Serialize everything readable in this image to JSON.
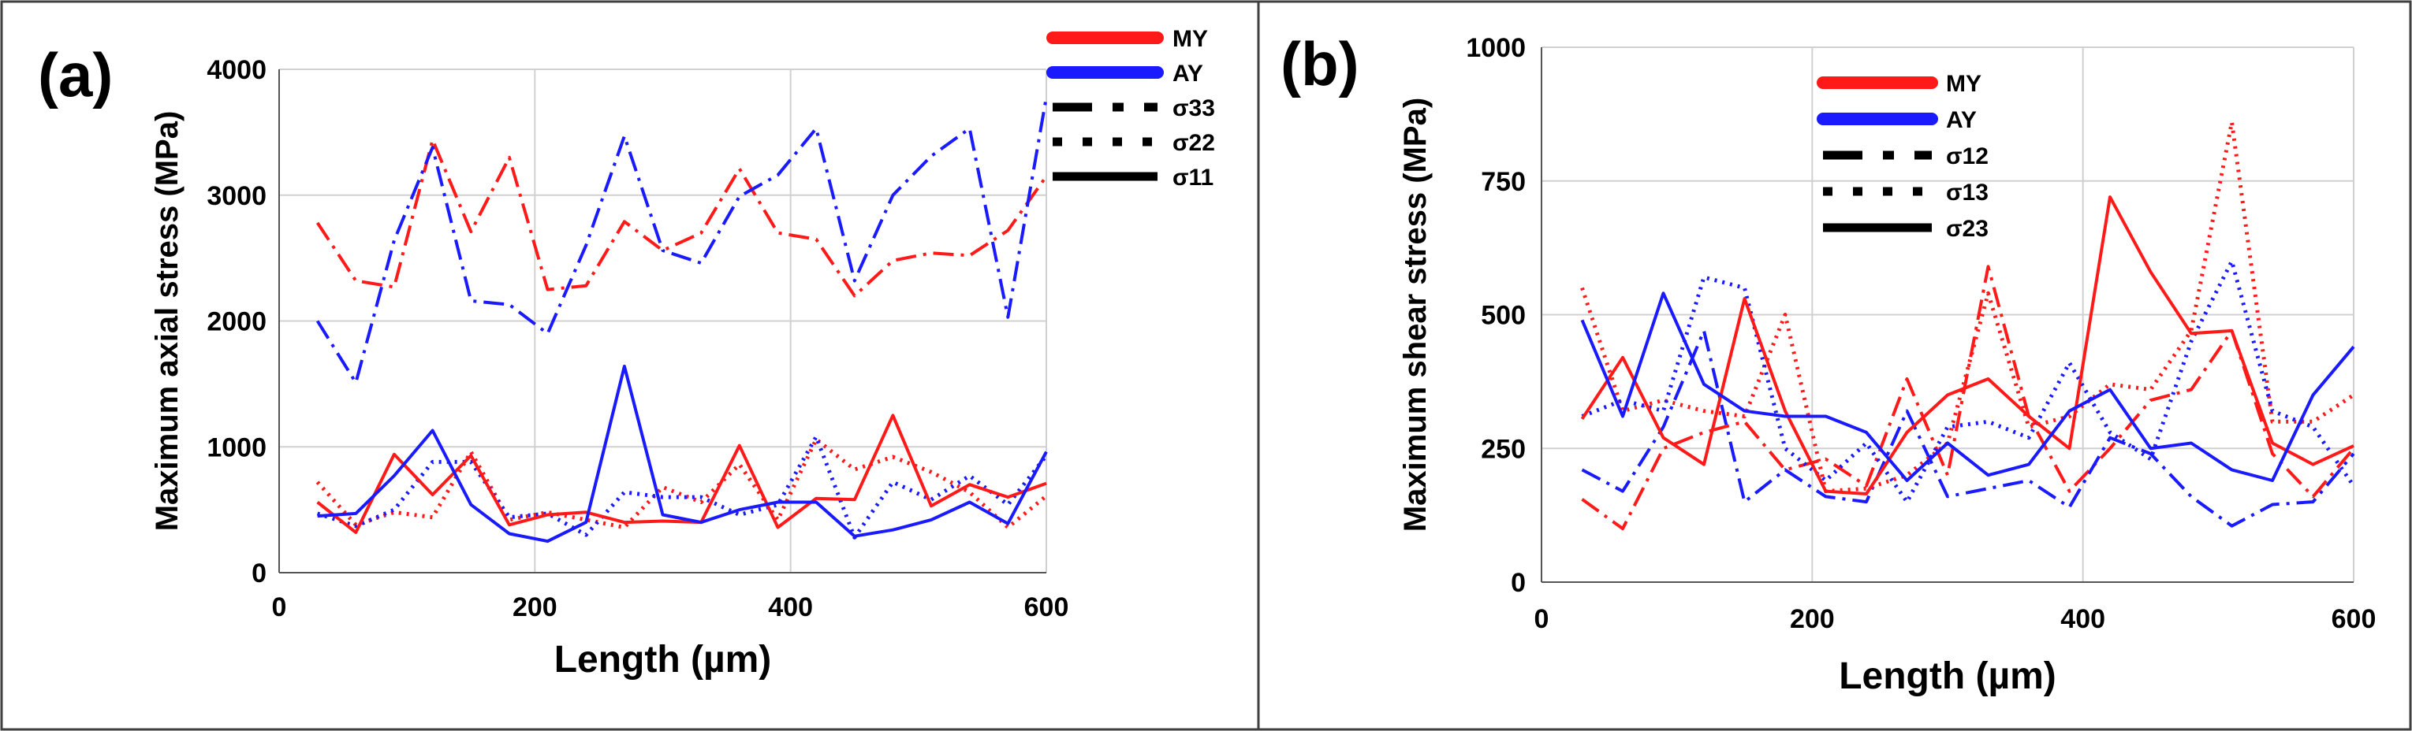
{
  "colors": {
    "red": "#ff1a1a",
    "blue": "#1a1aff",
    "black": "#000000",
    "grid": "#d0d0d0",
    "border": "#404040"
  },
  "chart_data": [
    {
      "type": "line",
      "panel_label": "(a)",
      "title": "",
      "xlabel": "Length (µm)",
      "ylabel": "Maximum axial stress (MPa)",
      "xlim": [
        0,
        600
      ],
      "ylim": [
        0,
        4000
      ],
      "xticks": [
        0,
        200,
        400,
        600
      ],
      "yticks": [
        0,
        1000,
        2000,
        3000,
        4000
      ],
      "grid": true,
      "legend_position": "top-right",
      "legend": [
        {
          "label": "MY",
          "kind": "color",
          "color": "red"
        },
        {
          "label": "AY",
          "kind": "color",
          "color": "blue"
        },
        {
          "label": "σ33",
          "kind": "style",
          "style": "dashdot"
        },
        {
          "label": "σ22",
          "kind": "style",
          "style": "dot"
        },
        {
          "label": "σ11",
          "kind": "style",
          "style": "solid"
        }
      ],
      "x": [
        30,
        60,
        90,
        120,
        150,
        180,
        210,
        240,
        270,
        300,
        330,
        360,
        390,
        420,
        450,
        480,
        510,
        540,
        570,
        600
      ],
      "series": [
        {
          "name": "MY σ33",
          "color": "red",
          "style": "dashdot",
          "values": [
            2780,
            2320,
            2270,
            3440,
            2710,
            3300,
            2250,
            2280,
            2790,
            2560,
            2700,
            3210,
            2700,
            2650,
            2200,
            2480,
            2540,
            2520,
            2720,
            3150
          ]
        },
        {
          "name": "AY σ33",
          "color": "blue",
          "style": "dashdot",
          "values": [
            2000,
            1510,
            2640,
            3380,
            2160,
            2130,
            1900,
            2600,
            3470,
            2560,
            2460,
            2990,
            3160,
            3530,
            2320,
            3000,
            3310,
            3530,
            2030,
            3780
          ]
        },
        {
          "name": "MY σ22",
          "color": "red",
          "style": "dot",
          "values": [
            720,
            380,
            480,
            440,
            960,
            420,
            480,
            420,
            360,
            680,
            560,
            860,
            420,
            1060,
            820,
            920,
            800,
            640,
            360,
            610
          ]
        },
        {
          "name": "AY σ22",
          "color": "blue",
          "style": "dot",
          "values": [
            470,
            370,
            500,
            880,
            880,
            440,
            470,
            300,
            640,
            600,
            600,
            460,
            540,
            1080,
            280,
            720,
            580,
            770,
            540,
            930
          ]
        },
        {
          "name": "MY σ11",
          "color": "red",
          "style": "solid",
          "values": [
            560,
            320,
            940,
            620,
            930,
            380,
            460,
            480,
            400,
            410,
            400,
            1010,
            360,
            590,
            580,
            1250,
            530,
            700,
            600,
            710
          ]
        },
        {
          "name": "AY σ11",
          "color": "blue",
          "style": "solid",
          "values": [
            450,
            470,
            770,
            1130,
            540,
            310,
            250,
            400,
            1640,
            460,
            400,
            500,
            560,
            560,
            290,
            340,
            420,
            560,
            390,
            960
          ]
        }
      ]
    },
    {
      "type": "line",
      "panel_label": "(b)",
      "title": "",
      "xlabel": "Length (µm)",
      "ylabel": "Maximum shear stress (MPa)",
      "xlim": [
        0,
        600
      ],
      "ylim": [
        0,
        1000
      ],
      "xticks": [
        0,
        200,
        400,
        600
      ],
      "yticks": [
        0,
        250,
        500,
        750,
        1000
      ],
      "grid": true,
      "legend_position": "top-center",
      "legend": [
        {
          "label": "MY",
          "kind": "color",
          "color": "red"
        },
        {
          "label": "AY",
          "kind": "color",
          "color": "blue"
        },
        {
          "label": "σ12",
          "kind": "style",
          "style": "dashdot"
        },
        {
          "label": "σ13",
          "kind": "style",
          "style": "dot"
        },
        {
          "label": "σ23",
          "kind": "style",
          "style": "solid"
        }
      ],
      "x": [
        30,
        60,
        90,
        120,
        150,
        180,
        210,
        240,
        270,
        300,
        330,
        360,
        390,
        420,
        450,
        480,
        510,
        540,
        570,
        600
      ],
      "series": [
        {
          "name": "MY σ12",
          "color": "red",
          "style": "dashdot",
          "values": [
            155,
            100,
            250,
            280,
            300,
            210,
            230,
            180,
            380,
            200,
            590,
            310,
            170,
            250,
            340,
            360,
            470,
            240,
            160,
            250
          ]
        },
        {
          "name": "AY σ12",
          "color": "blue",
          "style": "dashdot",
          "values": [
            210,
            170,
            290,
            470,
            150,
            210,
            160,
            150,
            320,
            160,
            175,
            190,
            140,
            270,
            240,
            160,
            105,
            145,
            150,
            240
          ]
        },
        {
          "name": "MY σ13",
          "color": "red",
          "style": "dot",
          "values": [
            550,
            320,
            340,
            320,
            310,
            500,
            170,
            175,
            200,
            260,
            540,
            290,
            310,
            370,
            360,
            470,
            860,
            300,
            300,
            350
          ]
        },
        {
          "name": "AY σ13",
          "color": "blue",
          "style": "dot",
          "values": [
            310,
            340,
            320,
            570,
            550,
            250,
            190,
            260,
            150,
            290,
            300,
            270,
            410,
            280,
            230,
            450,
            600,
            320,
            290,
            180
          ]
        },
        {
          "name": "MY σ23",
          "color": "red",
          "style": "solid",
          "values": [
            305,
            420,
            270,
            220,
            530,
            320,
            170,
            165,
            280,
            350,
            380,
            310,
            250,
            720,
            580,
            465,
            470,
            260,
            220,
            255
          ]
        },
        {
          "name": "AY σ23",
          "color": "blue",
          "style": "solid",
          "values": [
            490,
            310,
            540,
            370,
            320,
            310,
            310,
            280,
            190,
            260,
            200,
            220,
            320,
            360,
            250,
            260,
            210,
            190,
            350,
            440
          ]
        }
      ]
    }
  ]
}
